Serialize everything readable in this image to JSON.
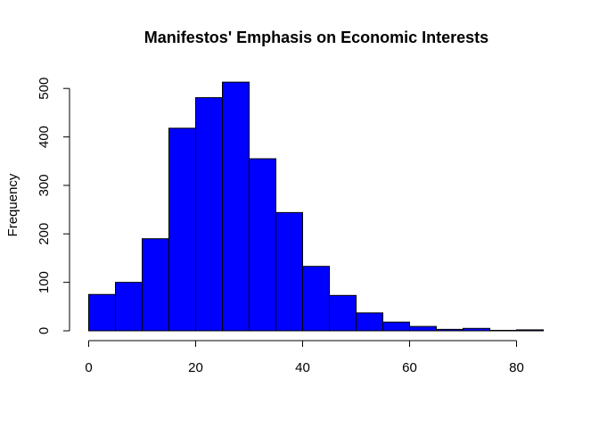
{
  "chart_data": {
    "type": "bar",
    "title": "Manifestos' Emphasis on Economic Interests",
    "xlabel": "",
    "ylabel": "Frequency",
    "bin_edges": [
      0,
      5,
      10,
      15,
      20,
      25,
      30,
      35,
      40,
      45,
      50,
      55,
      60,
      65,
      70,
      75,
      80,
      85
    ],
    "values": [
      75,
      100,
      190,
      418,
      481,
      513,
      355,
      244,
      133,
      73,
      37,
      18,
      9,
      3,
      5,
      1,
      2
    ],
    "xlim": [
      0,
      85
    ],
    "ylim": [
      0,
      513
    ],
    "x_ticks": [
      0,
      20,
      40,
      60,
      80
    ],
    "y_ticks": [
      0,
      100,
      200,
      300,
      400,
      500
    ],
    "bar_color": "#0000ff",
    "grid": false
  }
}
